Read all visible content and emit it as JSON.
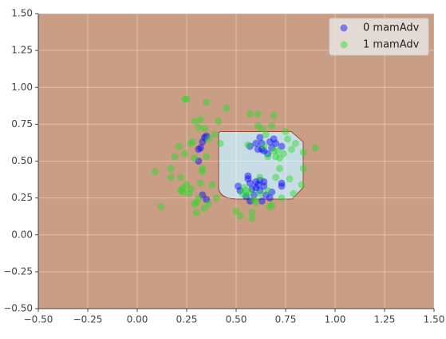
{
  "chart_data": {
    "type": "scatter",
    "xlim": [
      -0.5,
      1.5
    ],
    "ylim": [
      -0.5,
      1.5
    ],
    "xticks": [
      {
        "value": -0.5,
        "label": "−0.50"
      },
      {
        "value": -0.25,
        "label": "−0.25"
      },
      {
        "value": 0,
        "label": "0.00"
      },
      {
        "value": 0.25,
        "label": "0.25"
      },
      {
        "value": 0.5,
        "label": "0.50"
      },
      {
        "value": 0.75,
        "label": "0.75"
      },
      {
        "value": 1,
        "label": "1.00"
      },
      {
        "value": 1.25,
        "label": "1.25"
      },
      {
        "value": 1.5,
        "label": "1.50"
      }
    ],
    "yticks": [
      {
        "value": -0.5,
        "label": "−0.50"
      },
      {
        "value": -0.25,
        "label": "−0.25"
      },
      {
        "value": 0,
        "label": "0.00"
      },
      {
        "value": 0.25,
        "label": "0.25"
      },
      {
        "value": 0.5,
        "label": "0.50"
      },
      {
        "value": 0.75,
        "label": "0.75"
      },
      {
        "value": 1,
        "label": "1.00"
      },
      {
        "value": 1.25,
        "label": "1.25"
      },
      {
        "value": 1.5,
        "label": "1.50"
      }
    ],
    "grid": true,
    "legend": "upper right",
    "series": [
      {
        "name": "0 mamAdv",
        "color": "#0000ff",
        "x": [
          0.33,
          0.32,
          0.34,
          0.31,
          0.35,
          0.31,
          0.35,
          0.33,
          0.51,
          0.52,
          0.56,
          0.57,
          0.58,
          0.6,
          0.61,
          0.62,
          0.64,
          0.65,
          0.55,
          0.57,
          0.59,
          0.64,
          0.68,
          0.73,
          0.73,
          0.57,
          0.61,
          0.63,
          0.63,
          0.66,
          0.67,
          0.69,
          0.7,
          0.73,
          0.62,
          0.64,
          0.6,
          0.67,
          0.63,
          0.56,
          0.6,
          0.62,
          0.68
        ],
        "y": [
          0.63,
          0.59,
          0.66,
          0.58,
          0.67,
          0.5,
          0.24,
          0.27,
          0.33,
          0.3,
          0.38,
          0.35,
          0.31,
          0.32,
          0.34,
          0.3,
          0.33,
          0.27,
          0.26,
          0.23,
          0.27,
          0.36,
          0.29,
          0.33,
          0.35,
          0.6,
          0.58,
          0.58,
          0.62,
          0.55,
          0.63,
          0.65,
          0.62,
          0.6,
          0.66,
          0.57,
          0.62,
          0.25,
          0.23,
          0.4,
          0.36,
          0.37,
          0.59
        ]
      },
      {
        "name": "1 mamAdv",
        "color": "#22dd22",
        "x": [
          0.09,
          0.12,
          0.17,
          0.17,
          0.19,
          0.21,
          0.22,
          0.23,
          0.24,
          0.24,
          0.25,
          0.26,
          0.27,
          0.28,
          0.29,
          0.29,
          0.3,
          0.3,
          0.31,
          0.32,
          0.33,
          0.33,
          0.34,
          0.35,
          0.35,
          0.34,
          0.36,
          0.38,
          0.39,
          0.4,
          0.41,
          0.42,
          0.45,
          0.22,
          0.23,
          0.25,
          0.27,
          0.29,
          0.31,
          0.32,
          0.36,
          0.5,
          0.52,
          0.53,
          0.55,
          0.56,
          0.57,
          0.58,
          0.58,
          0.6,
          0.61,
          0.61,
          0.62,
          0.63,
          0.64,
          0.65,
          0.66,
          0.67,
          0.68,
          0.68,
          0.69,
          0.7,
          0.7,
          0.71,
          0.72,
          0.73,
          0.74,
          0.75,
          0.76,
          0.77,
          0.78,
          0.79,
          0.8,
          0.83,
          0.84,
          0.84,
          0.9,
          0.55,
          0.57,
          0.59,
          0.62,
          0.66,
          0.69,
          0.72,
          0.54
        ],
        "y": [
          0.43,
          0.19,
          0.39,
          0.45,
          0.53,
          0.6,
          0.3,
          0.32,
          0.55,
          0.92,
          0.92,
          0.28,
          0.62,
          0.63,
          0.77,
          0.52,
          0.15,
          0.22,
          0.73,
          0.78,
          0.45,
          0.43,
          0.72,
          0.9,
          0.53,
          0.18,
          0.65,
          0.34,
          0.68,
          0.25,
          0.77,
          0.62,
          0.86,
          0.39,
          0.29,
          0.34,
          0.31,
          0.21,
          0.25,
          0.35,
          0.21,
          0.16,
          0.13,
          0.28,
          0.3,
          0.61,
          0.82,
          0.15,
          0.11,
          0.22,
          0.74,
          0.82,
          0.39,
          0.72,
          0.6,
          0.68,
          0.53,
          0.19,
          0.2,
          0.74,
          0.81,
          0.53,
          0.39,
          0.57,
          0.45,
          0.25,
          0.55,
          0.7,
          0.65,
          0.38,
          0.58,
          0.28,
          0.62,
          0.34,
          0.45,
          0.56,
          0.59,
          0.27,
          0.29,
          0.24,
          0.28,
          0.3,
          0.57,
          0.52,
          0.32
        ]
      }
    ]
  }
}
